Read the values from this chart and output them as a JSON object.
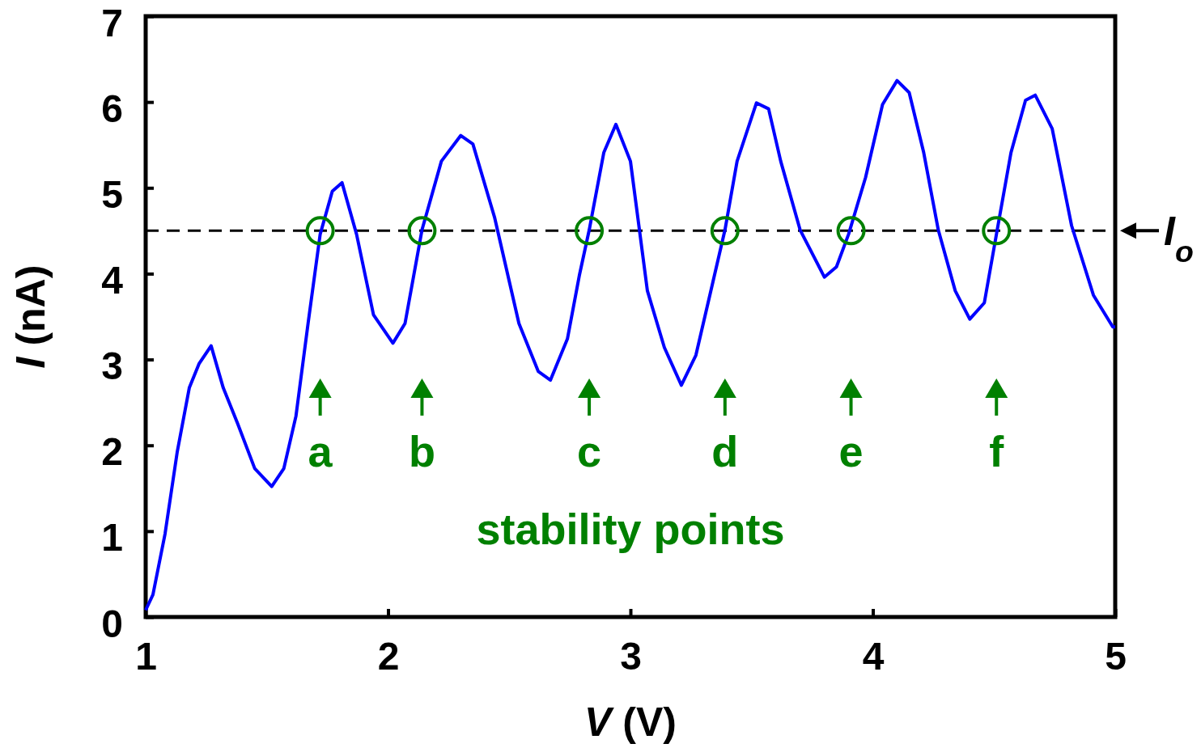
{
  "chart_data": {
    "type": "line",
    "xlabel": "V (V)",
    "ylabel": "I (nA)",
    "xlim": [
      1,
      5
    ],
    "ylim": [
      0,
      7
    ],
    "xticks": [
      1,
      2,
      3,
      4,
      5
    ],
    "yticks": [
      0,
      1,
      2,
      3,
      4,
      5,
      6,
      7
    ],
    "grid": false,
    "series": [
      {
        "color": "#0000ff",
        "marker": "none",
        "x": [
          1.0,
          1.03,
          1.08,
          1.13,
          1.18,
          1.22,
          1.27,
          1.32,
          1.38,
          1.45,
          1.52,
          1.57,
          1.62,
          1.67,
          1.72,
          1.77,
          1.81,
          1.87,
          1.94,
          2.02,
          2.07,
          2.14,
          2.22,
          2.3,
          2.35,
          2.44,
          2.54,
          2.62,
          2.67,
          2.74,
          2.79,
          2.83,
          2.89,
          2.94,
          3.0,
          3.07,
          3.14,
          3.21,
          3.27,
          3.34,
          3.39,
          3.44,
          3.52,
          3.57,
          3.62,
          3.7,
          3.8,
          3.85,
          3.9,
          3.97,
          4.04,
          4.1,
          4.15,
          4.21,
          4.27,
          4.34,
          4.4,
          4.46,
          4.51,
          4.57,
          4.63,
          4.67,
          4.74,
          4.82,
          4.91,
          4.99,
          5.0
        ],
        "values": [
          0.08,
          0.26,
          0.97,
          1.92,
          2.67,
          2.95,
          3.16,
          2.67,
          2.25,
          1.73,
          1.52,
          1.73,
          2.34,
          3.42,
          4.46,
          4.96,
          5.06,
          4.46,
          3.52,
          3.19,
          3.42,
          4.51,
          5.31,
          5.61,
          5.51,
          4.65,
          3.42,
          2.86,
          2.76,
          3.24,
          3.99,
          4.51,
          5.41,
          5.74,
          5.31,
          3.8,
          3.14,
          2.7,
          3.05,
          3.9,
          4.51,
          5.31,
          5.99,
          5.92,
          5.31,
          4.51,
          3.96,
          4.08,
          4.46,
          5.12,
          5.97,
          6.25,
          6.11,
          5.41,
          4.51,
          3.8,
          3.47,
          3.66,
          4.46,
          5.41,
          6.02,
          6.08,
          5.69,
          4.56,
          3.75,
          3.38,
          3.38
        ]
      },
      {
        "type": "scatter",
        "color": "#008000",
        "marker": "circle",
        "x": [
          1.72,
          2.14,
          2.83,
          3.39,
          3.91,
          4.51
        ],
        "values": [
          4.5,
          4.5,
          4.5,
          4.5,
          4.5,
          4.5
        ]
      }
    ],
    "ref_lines": [
      {
        "axis": "y",
        "value": 4.5,
        "label": "I$_{o}$",
        "color": "#000000",
        "line_style": "dashed"
      }
    ],
    "annotations": [
      "a",
      "b",
      "c",
      "d",
      "e",
      "f",
      "stability points"
    ]
  }
}
